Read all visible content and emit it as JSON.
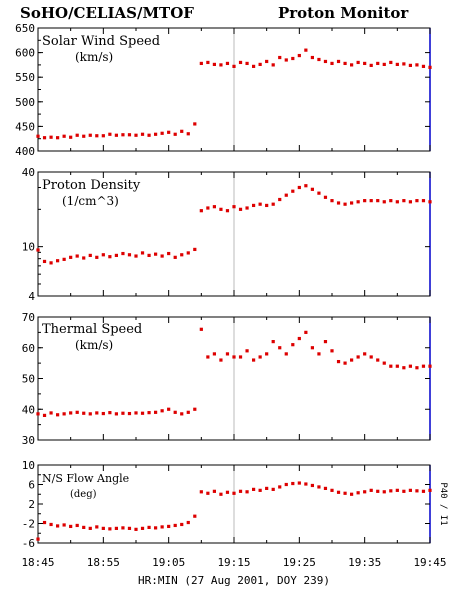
{
  "header": {
    "left_title": "SoHO/CELIAS/MTOF",
    "right_title": "Proton Monitor"
  },
  "x_axis": {
    "tick_labels": [
      "18:45",
      "18:55",
      "19:05",
      "19:15",
      "19:25",
      "19:35",
      "19:45"
    ],
    "label": "HR:MIN (27 Aug 2001, DOY 239)"
  },
  "side_label": "P40 / I1",
  "colors": {
    "data": "#dd0000",
    "frame": "#000000",
    "axis_right": "#0000cc",
    "marker_line": "#bbbbbb"
  },
  "chart_data": [
    {
      "type": "scatter",
      "title": "Solar Wind Speed",
      "ylabel": "(km/s)",
      "ylim": [
        400,
        650
      ],
      "yticks": [
        400,
        450,
        500,
        550,
        600,
        650
      ],
      "xlim": [
        0,
        60
      ],
      "x": [
        0,
        1,
        2,
        3,
        4,
        5,
        6,
        7,
        8,
        9,
        10,
        11,
        12,
        13,
        14,
        15,
        16,
        17,
        18,
        19,
        20,
        21,
        22,
        23,
        24,
        25,
        26,
        27,
        28,
        29,
        30,
        31,
        32,
        33,
        34,
        35,
        36,
        37,
        38,
        39,
        40,
        41,
        42,
        43,
        44,
        45,
        46,
        47,
        48,
        49,
        50,
        51,
        52,
        53,
        54,
        55,
        56,
        57,
        58,
        59,
        60
      ],
      "series": [
        {
          "values": [
            430,
            427,
            428,
            427,
            430,
            428,
            432,
            430,
            432,
            431,
            431,
            434,
            432,
            433,
            433,
            432,
            434,
            432,
            434,
            436,
            438,
            434,
            440,
            435,
            455,
            578,
            580,
            576,
            575,
            578,
            572,
            580,
            578,
            572,
            576,
            582,
            575,
            590,
            585,
            588,
            594,
            605,
            590,
            586,
            582,
            578,
            582,
            578,
            575,
            580,
            578,
            574,
            578,
            576,
            580,
            576,
            577,
            574,
            575,
            572,
            570
          ]
        }
      ]
    },
    {
      "type": "scatter",
      "title": "Proton Density",
      "ylabel": "(1/cm^3)",
      "yscale": "log",
      "ylim": [
        4,
        40
      ],
      "yticks": [
        4,
        10,
        40
      ],
      "xlim": [
        0,
        60
      ],
      "x": [
        0,
        1,
        2,
        3,
        4,
        5,
        6,
        7,
        8,
        9,
        10,
        11,
        12,
        13,
        14,
        15,
        16,
        17,
        18,
        19,
        20,
        21,
        22,
        23,
        24,
        25,
        26,
        27,
        28,
        29,
        30,
        31,
        32,
        33,
        34,
        35,
        36,
        37,
        38,
        39,
        40,
        41,
        42,
        43,
        44,
        45,
        46,
        47,
        48,
        49,
        50,
        51,
        52,
        53,
        54,
        55,
        56,
        57,
        58,
        59,
        60
      ],
      "series": [
        {
          "values": [
            9.4,
            7.6,
            7.4,
            7.7,
            7.9,
            8.2,
            8.4,
            8.1,
            8.5,
            8.2,
            8.6,
            8.3,
            8.5,
            8.8,
            8.6,
            8.4,
            8.9,
            8.5,
            8.7,
            8.4,
            8.8,
            8.2,
            8.6,
            8.9,
            9.5,
            19.5,
            20.5,
            21,
            20,
            19.5,
            21,
            20,
            20.5,
            21.5,
            22,
            21.5,
            22,
            24,
            26,
            28,
            30,
            31,
            29,
            27,
            25,
            23.5,
            22.5,
            22,
            22.5,
            23,
            23.5,
            23.5,
            23.5,
            23,
            23.5,
            23,
            23.5,
            23,
            23.5,
            23.5,
            23
          ]
        }
      ]
    },
    {
      "type": "scatter",
      "title": "Thermal Speed",
      "ylabel": "(km/s)",
      "ylim": [
        30,
        70
      ],
      "yticks": [
        30,
        40,
        50,
        60,
        70
      ],
      "xlim": [
        0,
        60
      ],
      "x": [
        0,
        1,
        2,
        3,
        4,
        5,
        6,
        7,
        8,
        9,
        10,
        11,
        12,
        13,
        14,
        15,
        16,
        17,
        18,
        19,
        20,
        21,
        22,
        23,
        24,
        25,
        26,
        27,
        28,
        29,
        30,
        31,
        32,
        33,
        34,
        35,
        36,
        37,
        38,
        39,
        40,
        41,
        42,
        43,
        44,
        45,
        46,
        47,
        48,
        49,
        50,
        51,
        52,
        53,
        54,
        55,
        56,
        57,
        58,
        59,
        60
      ],
      "series": [
        {
          "values": [
            38.5,
            38,
            38.8,
            38.2,
            38.5,
            38.8,
            39,
            38.7,
            38.5,
            38.8,
            38.6,
            38.9,
            38.5,
            38.7,
            38.6,
            38.8,
            38.7,
            38.9,
            39,
            39.5,
            40,
            39,
            38.5,
            39,
            40,
            66,
            57,
            58,
            56,
            58,
            57,
            57,
            59,
            56,
            57,
            58,
            62,
            60,
            58,
            61,
            63,
            65,
            60,
            58,
            62,
            59,
            55.5,
            55,
            56,
            57,
            58,
            57,
            56,
            55,
            54,
            54,
            53.5,
            54,
            53.5,
            54,
            54
          ]
        }
      ]
    },
    {
      "type": "scatter",
      "title": "N/S Flow Angle",
      "ylabel": "(deg)",
      "ylim": [
        -6,
        10
      ],
      "yticks": [
        -6,
        -2,
        2,
        6,
        10
      ],
      "yticks_labeled": [
        -6,
        -2,
        2,
        6,
        10
      ],
      "xlim": [
        0,
        60
      ],
      "x": [
        0,
        1,
        2,
        3,
        4,
        5,
        6,
        7,
        8,
        9,
        10,
        11,
        12,
        13,
        14,
        15,
        16,
        17,
        18,
        19,
        20,
        21,
        22,
        23,
        24,
        25,
        26,
        27,
        28,
        29,
        30,
        31,
        32,
        33,
        34,
        35,
        36,
        37,
        38,
        39,
        40,
        41,
        42,
        43,
        44,
        45,
        46,
        47,
        48,
        49,
        50,
        51,
        52,
        53,
        54,
        55,
        56,
        57,
        58,
        59,
        60
      ],
      "series": [
        {
          "values": [
            -5.2,
            -1.8,
            -2.2,
            -2.5,
            -2.3,
            -2.6,
            -2.4,
            -2.8,
            -3,
            -2.7,
            -3,
            -3.1,
            -3,
            -2.9,
            -3,
            -3.2,
            -3,
            -2.8,
            -2.9,
            -2.7,
            -2.6,
            -2.4,
            -2.2,
            -1.8,
            -0.5,
            4.5,
            4.2,
            4.6,
            4.0,
            4.4,
            4.2,
            4.6,
            4.5,
            5.0,
            4.8,
            5.2,
            5.0,
            5.5,
            6.0,
            6.2,
            6.3,
            6.1,
            5.8,
            5.5,
            5.2,
            4.8,
            4.4,
            4.2,
            4.0,
            4.3,
            4.5,
            4.8,
            4.6,
            4.5,
            4.7,
            4.8,
            4.6,
            4.8,
            4.7,
            4.6,
            4.8
          ]
        }
      ]
    }
  ]
}
